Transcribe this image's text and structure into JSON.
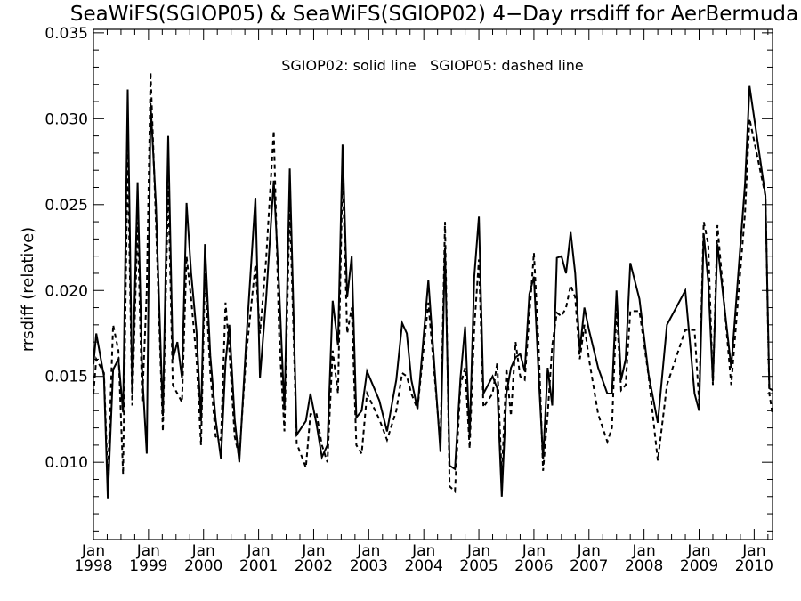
{
  "chart_data": {
    "type": "line",
    "title": "SeaWiFS(SGIOP05) & SeaWiFS(SGIOP02) 4−Day rrsdiff for AerBermuda",
    "annotation": "SGIOP02: solid line   SGIOP05: dashed line",
    "ylabel": "rrsdiff (relative)",
    "xlabel": "",
    "xlim": [
      "1998-01-01",
      "2010-05-01"
    ],
    "ylim": [
      0.0055,
      0.0352
    ],
    "y_ticks": [
      0.01,
      0.015,
      0.02,
      0.025,
      0.03,
      0.035
    ],
    "y_tick_labels": [
      "0.010",
      "0.015",
      "0.020",
      "0.025",
      "0.030",
      "0.035"
    ],
    "x_ticks": [
      "1998-01-01",
      "1999-01-01",
      "2000-01-01",
      "2001-01-01",
      "2002-01-01",
      "2003-01-01",
      "2004-01-01",
      "2005-01-01",
      "2006-01-01",
      "2007-01-01",
      "2008-01-01",
      "2009-01-01",
      "2010-01-01"
    ],
    "x_tick_labels": [
      {
        "month": "Jan",
        "year": "1998"
      },
      {
        "month": "Jan",
        "year": "1999"
      },
      {
        "month": "Jan",
        "year": "2000"
      },
      {
        "month": "Jan",
        "year": "2001"
      },
      {
        "month": "Jan",
        "year": "2002"
      },
      {
        "month": "Jan",
        "year": "2003"
      },
      {
        "month": "Jan",
        "year": "2004"
      },
      {
        "month": "Jan",
        "year": "2005"
      },
      {
        "month": "Jan",
        "year": "2006"
      },
      {
        "month": "Jan",
        "year": "2007"
      },
      {
        "month": "Jan",
        "year": "2008"
      },
      {
        "month": "Jan",
        "year": "2009"
      },
      {
        "month": "Jan",
        "year": "2010"
      }
    ],
    "grid": false,
    "series": [
      {
        "line_style": "solid",
        "color": "#000000",
        "points": [
          [
            "1997-12-20",
            0.0157
          ],
          [
            "1998-01-20",
            0.0175
          ],
          [
            "1998-03-10",
            0.015
          ],
          [
            "1998-04-05",
            0.0079
          ],
          [
            "1998-05-10",
            0.0154
          ],
          [
            "1998-06-15",
            0.016
          ],
          [
            "1998-07-15",
            0.0129
          ],
          [
            "1998-08-15",
            0.0317
          ],
          [
            "1998-09-15",
            0.014
          ],
          [
            "1998-10-20",
            0.0263
          ],
          [
            "1998-11-20",
            0.0152
          ],
          [
            "1998-12-20",
            0.0105
          ],
          [
            "1999-01-15",
            0.0309
          ],
          [
            "1999-02-20",
            0.025
          ],
          [
            "1999-04-05",
            0.0127
          ],
          [
            "1999-05-10",
            0.029
          ],
          [
            "1999-06-10",
            0.016
          ],
          [
            "1999-07-10",
            0.017
          ],
          [
            "1999-08-10",
            0.0149
          ],
          [
            "1999-09-10",
            0.0251
          ],
          [
            "1999-10-10",
            0.021
          ],
          [
            "1999-11-15",
            0.0176
          ],
          [
            "1999-12-15",
            0.0124
          ],
          [
            "2000-01-10",
            0.0227
          ],
          [
            "2000-02-15",
            0.0162
          ],
          [
            "2000-03-20",
            0.0125
          ],
          [
            "2000-04-25",
            0.0102
          ],
          [
            "2000-05-25",
            0.0158
          ],
          [
            "2000-06-20",
            0.018
          ],
          [
            "2000-07-25",
            0.0125
          ],
          [
            "2000-08-25",
            0.01
          ],
          [
            "2000-10-10",
            0.0171
          ],
          [
            "2000-12-10",
            0.0254
          ],
          [
            "2001-01-10",
            0.0149
          ],
          [
            "2001-02-20",
            0.0195
          ],
          [
            "2001-04-10",
            0.0264
          ],
          [
            "2001-05-15",
            0.0202
          ],
          [
            "2001-06-20",
            0.013
          ],
          [
            "2001-07-25",
            0.0271
          ],
          [
            "2001-09-10",
            0.0116
          ],
          [
            "2001-11-10",
            0.0124
          ],
          [
            "2001-12-10",
            0.014
          ],
          [
            "2002-01-20",
            0.0122
          ],
          [
            "2002-02-25",
            0.0103
          ],
          [
            "2002-04-01",
            0.011
          ],
          [
            "2002-05-05",
            0.0194
          ],
          [
            "2002-06-10",
            0.0168
          ],
          [
            "2002-07-10",
            0.0285
          ],
          [
            "2002-08-10",
            0.0196
          ],
          [
            "2002-09-10",
            0.022
          ],
          [
            "2002-10-10",
            0.0126
          ],
          [
            "2002-11-15",
            0.013
          ],
          [
            "2002-12-20",
            0.0153
          ],
          [
            "2003-03-10",
            0.0136
          ],
          [
            "2003-05-01",
            0.0118
          ],
          [
            "2003-07-01",
            0.0148
          ],
          [
            "2003-08-10",
            0.0181
          ],
          [
            "2003-09-10",
            0.0175
          ],
          [
            "2003-10-10",
            0.0148
          ],
          [
            "2003-11-20",
            0.0131
          ],
          [
            "2004-02-01",
            0.0206
          ],
          [
            "2004-04-20",
            0.0106
          ],
          [
            "2004-05-20",
            0.0225
          ],
          [
            "2004-06-20",
            0.0098
          ],
          [
            "2004-07-25",
            0.0096
          ],
          [
            "2004-09-01",
            0.0149
          ],
          [
            "2004-10-01",
            0.0179
          ],
          [
            "2004-11-01",
            0.0115
          ],
          [
            "2004-12-01",
            0.0208
          ],
          [
            "2005-01-01",
            0.0243
          ],
          [
            "2005-02-01",
            0.014
          ],
          [
            "2005-04-01",
            0.015
          ],
          [
            "2005-05-01",
            0.0143
          ],
          [
            "2005-06-01",
            0.008
          ],
          [
            "2005-07-01",
            0.014
          ],
          [
            "2005-08-01",
            0.0155
          ],
          [
            "2005-09-01",
            0.0161
          ],
          [
            "2005-10-01",
            0.0163
          ],
          [
            "2005-11-01",
            0.0153
          ],
          [
            "2005-12-01",
            0.0198
          ],
          [
            "2006-01-01",
            0.0208
          ],
          [
            "2006-02-01",
            0.0152
          ],
          [
            "2006-03-01",
            0.0102
          ],
          [
            "2006-04-01",
            0.0155
          ],
          [
            "2006-05-01",
            0.0133
          ],
          [
            "2006-06-01",
            0.0219
          ],
          [
            "2006-07-01",
            0.022
          ],
          [
            "2006-08-01",
            0.021
          ],
          [
            "2006-09-01",
            0.0234
          ],
          [
            "2006-10-01",
            0.021
          ],
          [
            "2006-11-01",
            0.0165
          ],
          [
            "2006-12-01",
            0.019
          ],
          [
            "2007-01-01",
            0.0177
          ],
          [
            "2007-03-01",
            0.0155
          ],
          [
            "2007-05-01",
            0.014
          ],
          [
            "2007-06-01",
            0.014
          ],
          [
            "2007-07-01",
            0.02
          ],
          [
            "2007-08-01",
            0.0148
          ],
          [
            "2007-09-01",
            0.016
          ],
          [
            "2007-10-01",
            0.0216
          ],
          [
            "2007-12-01",
            0.0195
          ],
          [
            "2008-02-01",
            0.0151
          ],
          [
            "2008-04-01",
            0.0123
          ],
          [
            "2008-06-01",
            0.018
          ],
          [
            "2008-10-01",
            0.02
          ],
          [
            "2008-12-01",
            0.014
          ],
          [
            "2009-01-01",
            0.013
          ],
          [
            "2009-02-01",
            0.0233
          ],
          [
            "2009-03-01",
            0.0205
          ],
          [
            "2009-04-01",
            0.0147
          ],
          [
            "2009-05-01",
            0.0227
          ],
          [
            "2009-08-01",
            0.0155
          ],
          [
            "2009-11-01",
            0.0262
          ],
          [
            "2009-12-01",
            0.0319
          ],
          [
            "2010-03-15",
            0.0255
          ],
          [
            "2010-04-10",
            0.0143
          ],
          [
            "2010-05-01",
            0.0142
          ]
        ]
      },
      {
        "line_style": "dashed",
        "color": "#000000",
        "points": [
          [
            "1997-12-20",
            0.014
          ],
          [
            "1998-01-20",
            0.016
          ],
          [
            "1998-03-10",
            0.0152
          ],
          [
            "1998-04-05",
            0.009
          ],
          [
            "1998-05-10",
            0.018
          ],
          [
            "1998-06-15",
            0.0165
          ],
          [
            "1998-07-15",
            0.0093
          ],
          [
            "1998-08-15",
            0.028
          ],
          [
            "1998-09-15",
            0.0133
          ],
          [
            "1998-10-20",
            0.024
          ],
          [
            "1998-11-20",
            0.0135
          ],
          [
            "1998-12-20",
            0.02
          ],
          [
            "1999-01-15",
            0.0327
          ],
          [
            "1999-02-20",
            0.024
          ],
          [
            "1999-04-05",
            0.0118
          ],
          [
            "1999-05-10",
            0.0261
          ],
          [
            "1999-06-10",
            0.0145
          ],
          [
            "1999-07-10",
            0.014
          ],
          [
            "1999-08-10",
            0.0135
          ],
          [
            "1999-09-10",
            0.022
          ],
          [
            "1999-10-10",
            0.0195
          ],
          [
            "1999-11-15",
            0.016
          ],
          [
            "1999-12-15",
            0.011
          ],
          [
            "2000-01-10",
            0.021
          ],
          [
            "2000-02-15",
            0.0152
          ],
          [
            "2000-03-20",
            0.0115
          ],
          [
            "2000-04-25",
            0.0113
          ],
          [
            "2000-05-25",
            0.0193
          ],
          [
            "2000-06-20",
            0.0165
          ],
          [
            "2000-07-25",
            0.0115
          ],
          [
            "2000-08-25",
            0.0103
          ],
          [
            "2000-10-10",
            0.0163
          ],
          [
            "2000-12-10",
            0.0215
          ],
          [
            "2001-01-10",
            0.0175
          ],
          [
            "2001-02-20",
            0.0218
          ],
          [
            "2001-04-10",
            0.0293
          ],
          [
            "2001-05-15",
            0.0175
          ],
          [
            "2001-06-20",
            0.0118
          ],
          [
            "2001-07-25",
            0.025
          ],
          [
            "2001-09-10",
            0.0111
          ],
          [
            "2001-11-10",
            0.0097
          ],
          [
            "2001-12-10",
            0.0128
          ],
          [
            "2002-01-20",
            0.0128
          ],
          [
            "2002-02-25",
            0.011
          ],
          [
            "2002-04-01",
            0.01
          ],
          [
            "2002-05-05",
            0.0165
          ],
          [
            "2002-06-10",
            0.014
          ],
          [
            "2002-07-10",
            0.027
          ],
          [
            "2002-08-10",
            0.0175
          ],
          [
            "2002-09-10",
            0.019
          ],
          [
            "2002-10-10",
            0.011
          ],
          [
            "2002-11-15",
            0.0105
          ],
          [
            "2002-12-20",
            0.014
          ],
          [
            "2003-03-10",
            0.0125
          ],
          [
            "2003-05-01",
            0.0113
          ],
          [
            "2003-07-01",
            0.013
          ],
          [
            "2003-08-10",
            0.0152
          ],
          [
            "2003-09-10",
            0.015
          ],
          [
            "2003-10-10",
            0.014
          ],
          [
            "2003-11-20",
            0.0131
          ],
          [
            "2004-02-01",
            0.0193
          ],
          [
            "2004-04-20",
            0.011
          ],
          [
            "2004-05-20",
            0.024
          ],
          [
            "2004-06-20",
            0.0086
          ],
          [
            "2004-07-25",
            0.0083
          ],
          [
            "2004-09-01",
            0.0145
          ],
          [
            "2004-10-01",
            0.0155
          ],
          [
            "2004-11-01",
            0.0108
          ],
          [
            "2004-12-01",
            0.0178
          ],
          [
            "2005-01-01",
            0.0218
          ],
          [
            "2005-02-01",
            0.0132
          ],
          [
            "2005-04-01",
            0.014
          ],
          [
            "2005-05-01",
            0.0158
          ],
          [
            "2005-06-01",
            0.0091
          ],
          [
            "2005-07-01",
            0.0155
          ],
          [
            "2005-08-01",
            0.0127
          ],
          [
            "2005-09-01",
            0.017
          ],
          [
            "2005-10-01",
            0.015
          ],
          [
            "2005-11-01",
            0.0148
          ],
          [
            "2005-12-01",
            0.0185
          ],
          [
            "2006-01-01",
            0.0222
          ],
          [
            "2006-02-01",
            0.017
          ],
          [
            "2006-03-01",
            0.0095
          ],
          [
            "2006-04-01",
            0.0128
          ],
          [
            "2006-05-01",
            0.0168
          ],
          [
            "2006-06-01",
            0.0187
          ],
          [
            "2006-07-01",
            0.0185
          ],
          [
            "2006-08-01",
            0.019
          ],
          [
            "2006-09-01",
            0.0203
          ],
          [
            "2006-10-01",
            0.0196
          ],
          [
            "2006-11-01",
            0.016
          ],
          [
            "2006-12-01",
            0.018
          ],
          [
            "2007-01-01",
            0.016
          ],
          [
            "2007-03-01",
            0.0128
          ],
          [
            "2007-05-01",
            0.0112
          ],
          [
            "2007-06-01",
            0.012
          ],
          [
            "2007-07-01",
            0.019
          ],
          [
            "2007-08-01",
            0.0142
          ],
          [
            "2007-09-01",
            0.0145
          ],
          [
            "2007-10-01",
            0.0188
          ],
          [
            "2007-12-01",
            0.0188
          ],
          [
            "2008-02-01",
            0.015
          ],
          [
            "2008-04-01",
            0.0101
          ],
          [
            "2008-06-01",
            0.0145
          ],
          [
            "2008-10-01",
            0.0177
          ],
          [
            "2008-12-01",
            0.0177
          ],
          [
            "2009-01-01",
            0.0135
          ],
          [
            "2009-02-01",
            0.024
          ],
          [
            "2009-03-01",
            0.0227
          ],
          [
            "2009-04-01",
            0.0145
          ],
          [
            "2009-05-01",
            0.0238
          ],
          [
            "2009-08-01",
            0.0145
          ],
          [
            "2009-11-01",
            0.0245
          ],
          [
            "2009-12-01",
            0.03
          ],
          [
            "2010-03-15",
            0.0255
          ],
          [
            "2010-04-10",
            0.014
          ],
          [
            "2010-05-01",
            0.0128
          ]
        ]
      }
    ]
  }
}
